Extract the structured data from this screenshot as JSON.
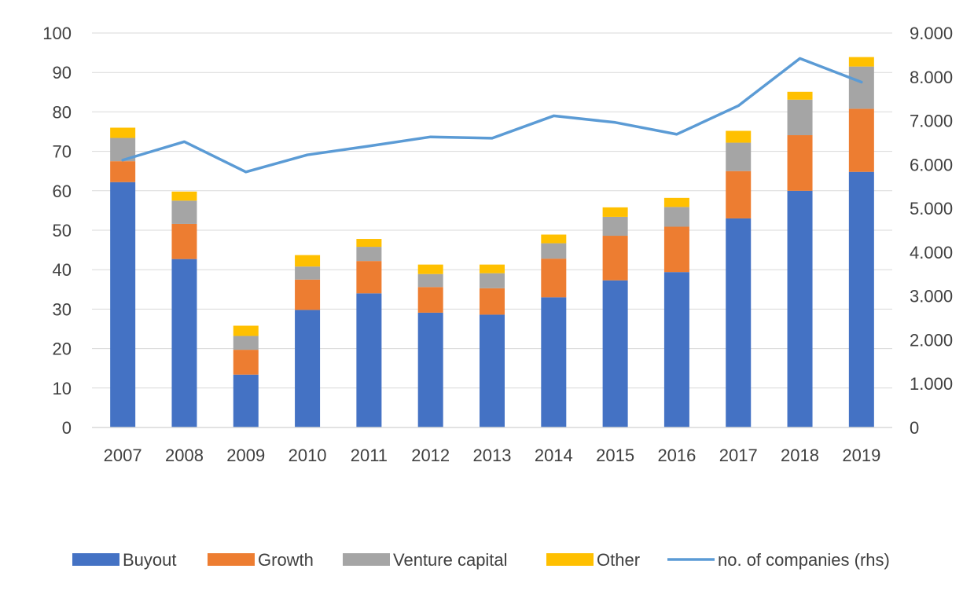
{
  "chart_data": {
    "type": "bar",
    "stacked": true,
    "categories": [
      "2007",
      "2008",
      "2009",
      "2010",
      "2011",
      "2012",
      "2013",
      "2014",
      "2015",
      "2016",
      "2017",
      "2018",
      "2019"
    ],
    "series": [
      {
        "name": "Buyout",
        "color": "#4472C4",
        "values": [
          62.2,
          42.7,
          13.4,
          29.8,
          34.0,
          29.1,
          28.6,
          33.0,
          37.3,
          39.4,
          53.0,
          60.0,
          64.8
        ]
      },
      {
        "name": "Growth",
        "color": "#ED7D31",
        "values": [
          5.3,
          8.9,
          6.3,
          7.7,
          8.2,
          6.5,
          6.7,
          9.8,
          11.3,
          11.5,
          12.0,
          14.1,
          16.0
        ]
      },
      {
        "name": "Venture capital",
        "color": "#A5A5A5",
        "values": [
          5.9,
          5.9,
          3.5,
          3.3,
          3.6,
          3.3,
          3.8,
          3.9,
          4.8,
          5.0,
          7.2,
          9.0,
          10.7
        ]
      },
      {
        "name": "Other",
        "color": "#FFC000",
        "values": [
          2.6,
          2.3,
          2.6,
          2.9,
          2.0,
          2.4,
          2.2,
          2.2,
          2.4,
          2.3,
          3.0,
          2.0,
          2.4
        ]
      }
    ],
    "line_series": {
      "name": "no. of companies (rhs)",
      "color": "#5B9BD5",
      "axis": "right",
      "values": [
        6100,
        6520,
        5830,
        6220,
        6420,
        6630,
        6600,
        7110,
        6960,
        6690,
        7340,
        8420,
        7880
      ]
    },
    "y_left": {
      "min": 0,
      "max": 100,
      "step": 10,
      "ticks": [
        "0",
        "10",
        "20",
        "30",
        "40",
        "50",
        "60",
        "70",
        "80",
        "90",
        "100"
      ]
    },
    "y_right": {
      "min": 0,
      "max": 9000,
      "step": 1000,
      "ticks": [
        "0",
        "1.000",
        "2.000",
        "3.000",
        "4.000",
        "5.000",
        "6.000",
        "7.000",
        "8.000",
        "9.000"
      ]
    },
    "grid": true,
    "legend_position": "bottom",
    "title": "",
    "xlabel": "",
    "ylabel": ""
  }
}
